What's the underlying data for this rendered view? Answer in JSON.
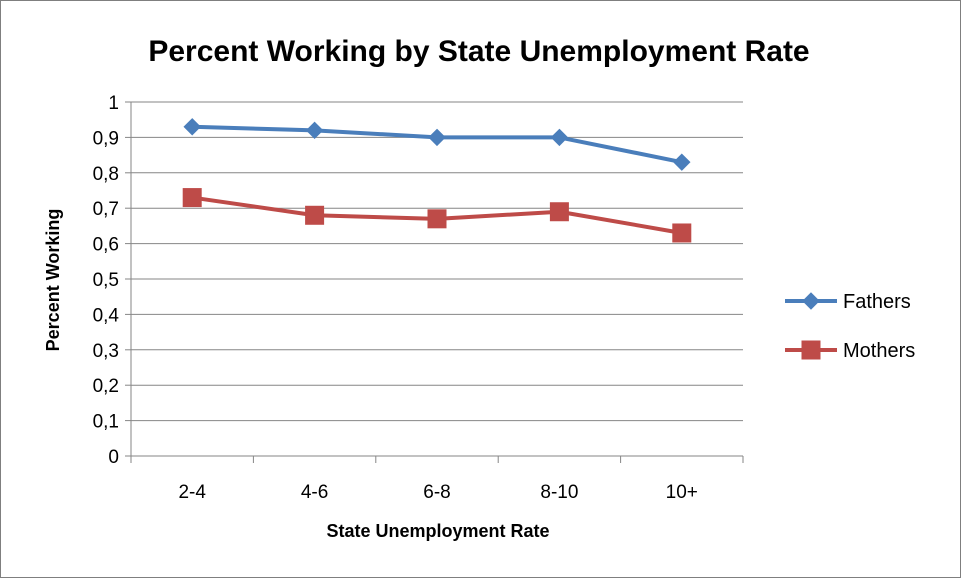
{
  "chart_data": {
    "type": "line",
    "title": "Percent Working by State Unemployment Rate",
    "xlabel": "State Unemployment Rate",
    "ylabel": "Percent Working",
    "categories": [
      "2-4",
      "4-6",
      "6-8",
      "8-10",
      "10+"
    ],
    "ylim": [
      0,
      1
    ],
    "yticks": [
      "0",
      "0,1",
      "0,2",
      "0,3",
      "0,4",
      "0,5",
      "0,6",
      "0,7",
      "0,8",
      "0,9",
      "1"
    ],
    "grid": "horizontal",
    "legend_position": "right",
    "series": [
      {
        "name": "Fathers",
        "values": [
          0.93,
          0.92,
          0.9,
          0.9,
          0.83
        ],
        "color": "#4a7ebb",
        "marker": "diamond"
      },
      {
        "name": "Mothers",
        "values": [
          0.73,
          0.68,
          0.67,
          0.69,
          0.63
        ],
        "color": "#be4b48",
        "marker": "square"
      }
    ]
  }
}
